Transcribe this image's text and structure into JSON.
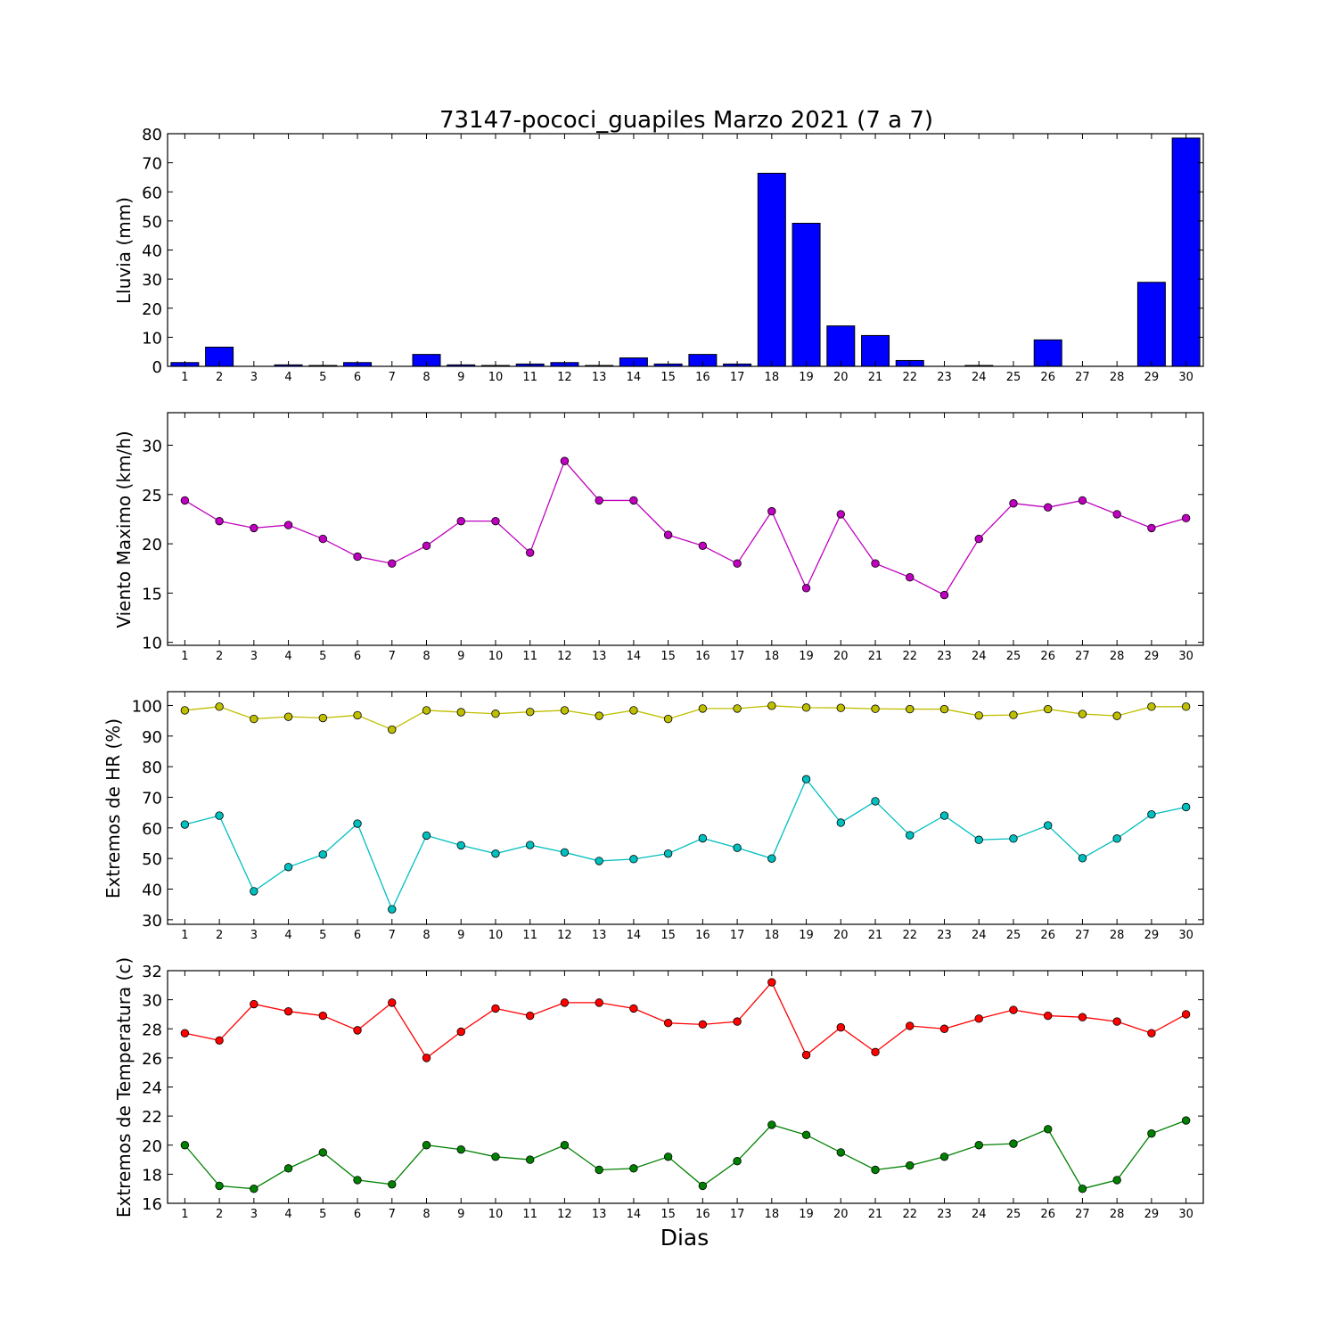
{
  "chart_data": [
    {
      "type": "bar",
      "title": "73147-pococi_guapiles Marzo 2021  (7 a 7)",
      "ylabel": "Lluvia (mm)",
      "xlabel": "",
      "categories": [
        1,
        2,
        3,
        4,
        5,
        6,
        7,
        8,
        9,
        10,
        11,
        12,
        13,
        14,
        15,
        16,
        17,
        18,
        19,
        20,
        21,
        22,
        23,
        24,
        25,
        26,
        27,
        28,
        29,
        30
      ],
      "values": [
        1.3,
        6.6,
        0.0,
        0.5,
        0.3,
        1.3,
        0.0,
        4.1,
        0.5,
        0.3,
        0.8,
        1.3,
        0.3,
        2.9,
        0.8,
        4.1,
        0.8,
        66.4,
        49.2,
        13.9,
        10.6,
        2.0,
        0.0,
        0.3,
        0.0,
        9.1,
        0.0,
        0.0,
        28.9,
        78.5
      ],
      "ylim": [
        0,
        80
      ],
      "yticks": [
        0,
        10,
        20,
        30,
        40,
        50,
        60,
        70,
        80
      ],
      "color": "#0000ff",
      "grid": false
    },
    {
      "type": "line",
      "ylabel": "Viento Maximo (km/h)",
      "xlabel": "",
      "x": [
        1,
        2,
        3,
        4,
        5,
        6,
        7,
        8,
        9,
        10,
        11,
        12,
        13,
        14,
        15,
        16,
        17,
        18,
        19,
        20,
        21,
        22,
        23,
        24,
        25,
        26,
        27,
        28,
        29,
        30
      ],
      "series": [
        {
          "values": [
            24.4,
            22.3,
            21.6,
            21.9,
            20.5,
            18.7,
            18.0,
            19.8,
            22.3,
            22.3,
            19.1,
            28.4,
            24.4,
            24.4,
            20.9,
            19.8,
            18.0,
            23.3,
            15.5,
            23.0,
            18.0,
            16.6,
            14.8,
            20.5,
            24.1,
            23.7,
            24.4,
            23.0,
            21.6,
            22.6
          ],
          "color": "#bf00bf"
        }
      ],
      "ylim": [
        9.7,
        33.3
      ],
      "yticks": [
        10,
        15,
        20,
        25,
        30
      ],
      "grid": false
    },
    {
      "type": "line",
      "ylabel": "Extremos de HR (%)",
      "xlabel": "",
      "x": [
        1,
        2,
        3,
        4,
        5,
        6,
        7,
        8,
        9,
        10,
        11,
        12,
        13,
        14,
        15,
        16,
        17,
        18,
        19,
        20,
        21,
        22,
        23,
        24,
        25,
        26,
        27,
        28,
        29,
        30
      ],
      "series": [
        {
          "values": [
            98.4,
            99.6,
            95.6,
            96.3,
            95.9,
            96.8,
            92.1,
            98.4,
            97.8,
            97.3,
            97.9,
            98.4,
            96.6,
            98.4,
            95.6,
            99.0,
            99.0,
            99.9,
            99.3,
            99.2,
            98.9,
            98.8,
            98.8,
            96.7,
            96.9,
            98.8,
            97.2,
            96.6,
            99.6,
            99.6
          ],
          "color": "#bfbf00"
        },
        {
          "values": [
            61.1,
            64.0,
            39.3,
            47.2,
            51.3,
            61.4,
            33.4,
            57.5,
            54.3,
            51.6,
            54.4,
            52.0,
            49.2,
            49.8,
            51.6,
            56.6,
            53.5,
            50.0,
            75.9,
            61.7,
            68.7,
            57.6,
            64.0,
            56.1,
            56.5,
            60.8,
            50.1,
            56.5,
            64.4,
            66.8
          ],
          "color": "#00bfbf"
        }
      ],
      "ylim": [
        28.5,
        104.5
      ],
      "yticks": [
        30,
        40,
        50,
        60,
        70,
        80,
        90,
        100
      ],
      "grid": false
    },
    {
      "type": "line",
      "ylabel": "Extremos de Temperatura (c)",
      "xlabel": "Dias",
      "x": [
        1,
        2,
        3,
        4,
        5,
        6,
        7,
        8,
        9,
        10,
        11,
        12,
        13,
        14,
        15,
        16,
        17,
        18,
        19,
        20,
        21,
        22,
        23,
        24,
        25,
        26,
        27,
        28,
        29,
        30
      ],
      "series": [
        {
          "values": [
            27.7,
            27.2,
            29.7,
            29.2,
            28.9,
            27.9,
            29.8,
            26.0,
            27.8,
            29.4,
            28.9,
            29.8,
            29.8,
            29.4,
            28.4,
            28.3,
            28.5,
            31.2,
            26.2,
            28.1,
            26.4,
            28.2,
            28.0,
            28.7,
            29.3,
            28.9,
            28.8,
            28.5,
            27.7,
            29.0
          ],
          "color": "#ff0000"
        },
        {
          "values": [
            20.0,
            17.2,
            17.0,
            18.4,
            19.5,
            17.6,
            17.3,
            20.0,
            19.7,
            19.2,
            19.0,
            20.0,
            18.3,
            18.4,
            19.2,
            17.2,
            18.9,
            21.4,
            20.7,
            19.5,
            18.3,
            18.6,
            19.2,
            20.0,
            20.1,
            21.1,
            17.0,
            17.6,
            20.8,
            21.7
          ],
          "color": "#008000"
        }
      ],
      "ylim": [
        16,
        32
      ],
      "yticks": [
        16,
        18,
        20,
        22,
        24,
        26,
        28,
        30,
        32
      ],
      "grid": false
    }
  ]
}
